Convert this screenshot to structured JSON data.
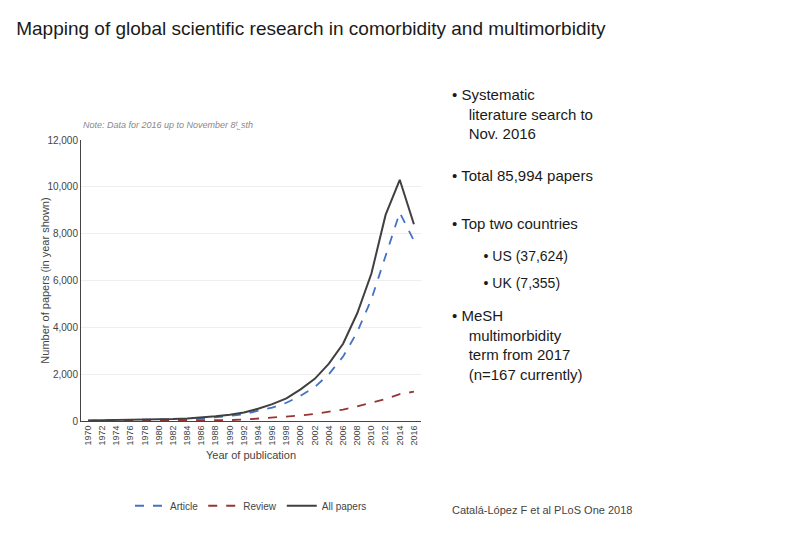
{
  "chart_data": {
    "type": "line",
    "title": "Mapping of global scientific research in comorbidity and multimorbidity",
    "xlabel": "Year of publication",
    "ylabel": "Number of papers (in year shown)",
    "annotations": [
      "Note: Data for 2016 up to November 8ᵗ˾sth",
      "• Systematic\n  literature search to\n  Nov. 2016",
      "• Total 85,994 papers",
      "• Top two countries",
      "  • US (37,624)",
      "  • UK (7,355)",
      "• MeSH\n  multimorbidity\n  term from 2017\n  (n=167 currently)",
      "Catalá-López F et al PLoS One 2018"
    ],
    "x": [
      1970,
      1972,
      1974,
      1976,
      1978,
      1980,
      1982,
      1984,
      1986,
      1988,
      1990,
      1992,
      1994,
      1996,
      1998,
      2000,
      2002,
      2004,
      2006,
      2008,
      2010,
      2012,
      2014,
      2016
    ],
    "series": [
      {
        "name": "Article",
        "color": "#4472c4",
        "line_style": "dashed",
        "values": [
          20,
          25,
          30,
          35,
          42,
          52,
          65,
          85,
          115,
          160,
          215,
          295,
          420,
          575,
          780,
          1080,
          1450,
          2000,
          2750,
          3800,
          5200,
          7000,
          8900,
          7700
        ]
      },
      {
        "name": "Review",
        "color": "#943634",
        "line_style": "dashed",
        "values": [
          5,
          6,
          7,
          8,
          10,
          13,
          16,
          20,
          25,
          32,
          40,
          60,
          100,
          140,
          175,
          235,
          305,
          395,
          490,
          620,
          770,
          940,
          1150,
          1250
        ]
      },
      {
        "name": "All papers",
        "color": "#404040",
        "line_style": "solid",
        "values": [
          26,
          33,
          40,
          46,
          55,
          68,
          85,
          110,
          148,
          200,
          265,
          360,
          520,
          720,
          965,
          1350,
          1800,
          2450,
          3300,
          4600,
          6300,
          8800,
          10300,
          8400
        ]
      }
    ],
    "xlim": [
      1969,
      2017
    ],
    "xticks": [
      1970,
      1972,
      1974,
      1976,
      1978,
      1980,
      1982,
      1984,
      1986,
      1988,
      1990,
      1992,
      1994,
      1996,
      1998,
      2000,
      2002,
      2004,
      2006,
      2008,
      2010,
      2012,
      2014,
      2016
    ],
    "ylim": [
      0,
      12000
    ],
    "yticks": [
      0,
      {
        "value": 2000,
        "label": "2,000"
      },
      {
        "value": 4000,
        "label": "4,000"
      },
      {
        "value": 6000,
        "label": "6,000"
      },
      {
        "value": 8000,
        "label": "8,000"
      },
      {
        "value": 10000,
        "label": "10,000"
      },
      {
        "value": 12000,
        "label": "12,000"
      }
    ],
    "grid": true,
    "legend": "bottom"
  }
}
